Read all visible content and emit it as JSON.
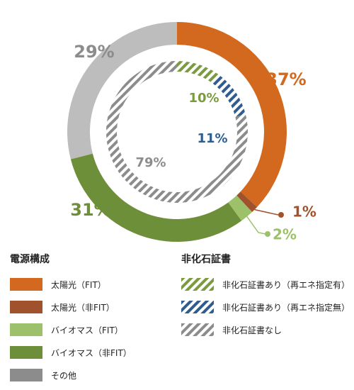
{
  "colors": {
    "solar_fit": "#d2691e",
    "solar_nonfit": "#a0522d",
    "bio_fit": "#9dc06a",
    "bio_nonfit": "#6e8f3a",
    "other": "#bdbdbd",
    "hatch_green": "#7a9b3e",
    "hatch_blue": "#2f5d8f",
    "hatch_gray": "#8c8c8c"
  },
  "chart_data": [
    {
      "type": "donut",
      "name": "電源構成",
      "categories": [
        "太陽光（FIT）",
        "太陽光（非FIT）",
        "バイオマス（FIT）",
        "バイオマス（非FIT）",
        "その他"
      ],
      "values": [
        37,
        1,
        2,
        31,
        29
      ],
      "labels": [
        "37%",
        "1%",
        "2%",
        "31%",
        "29%"
      ],
      "colors": [
        "#d2691e",
        "#a0522d",
        "#9dc06a",
        "#6e8f3a",
        "#bdbdbd"
      ]
    },
    {
      "type": "donut",
      "name": "非化石証書",
      "categories": [
        "非化石証書あり（再エネ指定有）",
        "非化石証書あり（再エネ指定無）",
        "非化石証書なし"
      ],
      "values": [
        10,
        11,
        79
      ],
      "labels": [
        "10%",
        "11%",
        "79%"
      ],
      "colors": [
        "#7a9b3e",
        "#2f5d8f",
        "#8c8c8c"
      ],
      "pattern": "hatched"
    }
  ],
  "legend_power": {
    "title": "電源構成",
    "items": [
      "太陽光（FIT）",
      "太陽光（非FIT）",
      "バイオマス（FIT）",
      "バイオマス（非FIT）",
      "その他"
    ]
  },
  "legend_cert": {
    "title": "非化石証書",
    "items": [
      "非化石証書あり（再エネ指定有）",
      "非化石証書あり（再エネ指定無）",
      "非化石証書なし"
    ]
  }
}
